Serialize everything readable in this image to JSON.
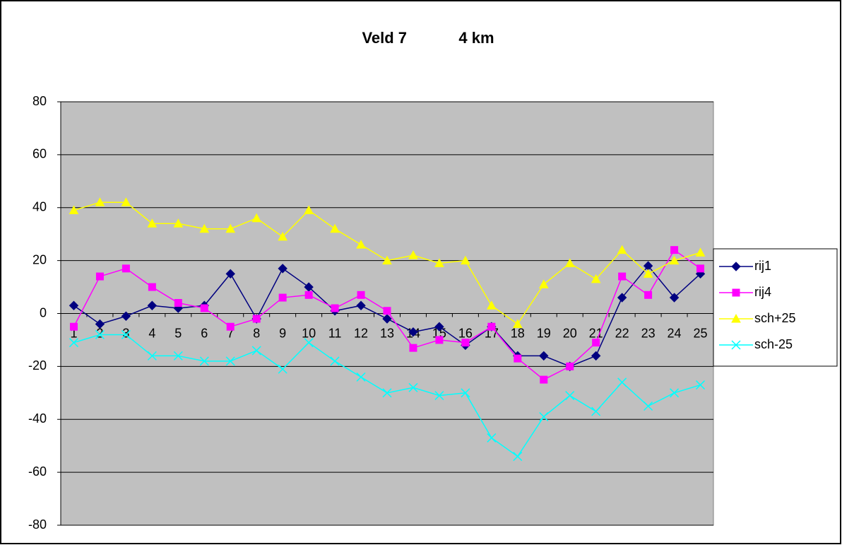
{
  "chart_data": {
    "type": "line",
    "title": "Veld 7            4 km",
    "categories": [
      1,
      2,
      3,
      4,
      5,
      6,
      7,
      8,
      9,
      10,
      11,
      12,
      13,
      14,
      15,
      16,
      17,
      18,
      19,
      20,
      21,
      22,
      23,
      24,
      25
    ],
    "series": [
      {
        "name": "rij1",
        "color": "#000080",
        "marker": "diamond",
        "values": [
          3,
          -4,
          -1,
          3,
          2,
          3,
          15,
          -2,
          17,
          10,
          1,
          3,
          -2,
          -7,
          -5,
          -12,
          -5,
          -16,
          -16,
          -20,
          -16,
          6,
          18,
          6,
          15
        ]
      },
      {
        "name": "rij4",
        "color": "#ff00ff",
        "marker": "square",
        "values": [
          -5,
          14,
          17,
          10,
          4,
          2,
          -5,
          -2,
          6,
          7,
          2,
          7,
          1,
          -13,
          -10,
          -11,
          -5,
          -17,
          -25,
          -20,
          -11,
          14,
          7,
          24,
          17
        ]
      },
      {
        "name": "sch+25",
        "color": "#ffff00",
        "marker": "triangle",
        "values": [
          39,
          42,
          42,
          34,
          34,
          32,
          32,
          36,
          29,
          39,
          32,
          26,
          20,
          22,
          19,
          20,
          3,
          -4,
          11,
          19,
          13,
          24,
          15,
          20,
          23
        ]
      },
      {
        "name": "sch-25",
        "color": "#00ffff",
        "marker": "x",
        "values": [
          -11,
          -8,
          -8,
          -16,
          -16,
          -18,
          -18,
          -14,
          -21,
          -11,
          -18,
          -24,
          -30,
          -28,
          -31,
          -30,
          -47,
          -54,
          -39,
          -31,
          -37,
          -26,
          -35,
          -30,
          -27
        ]
      }
    ],
    "ylim": [
      -80,
      80
    ],
    "yticks": [
      -80,
      -60,
      -40,
      -20,
      0,
      20,
      40,
      60,
      80
    ],
    "grid": true,
    "legend": "right"
  }
}
